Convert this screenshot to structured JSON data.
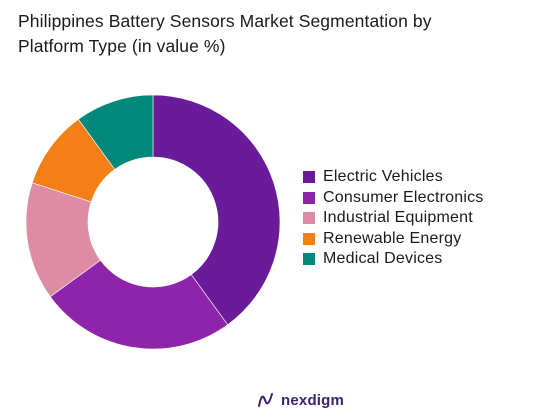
{
  "chart_data": {
    "type": "pie",
    "variant": "donut",
    "title_lines": [
      "Philippines Battery Sensors Market Segmentation by",
      "Platform Type (in value %)"
    ],
    "categories": [
      "Electric Vehicles",
      "Consumer Electronics",
      "Industrial Equipment",
      "Renewable Energy",
      "Medical Devices"
    ],
    "values": [
      40,
      25,
      15,
      10,
      10
    ],
    "colors": [
      "#6a1b9a",
      "#8e24aa",
      "#de8ca3",
      "#f57f17",
      "#00897b"
    ],
    "legend_position": "right"
  },
  "brand": {
    "name": "nexdigm",
    "logo_icon": "nexdigm-logo-icon",
    "color": "#3a2470"
  }
}
